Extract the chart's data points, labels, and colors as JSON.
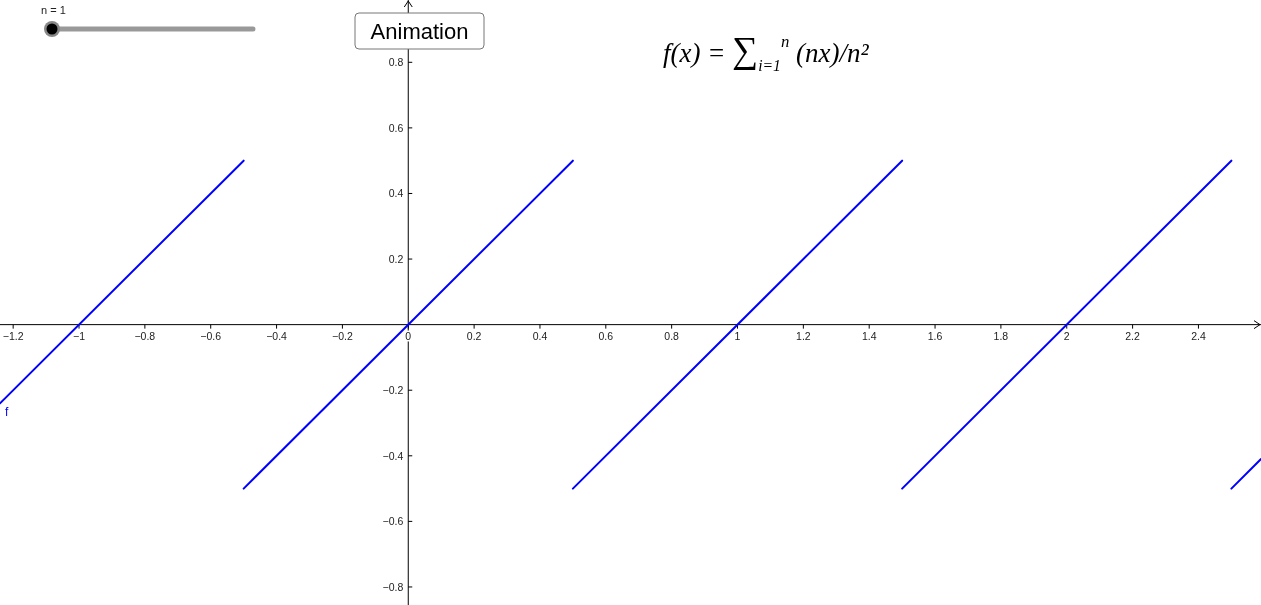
{
  "chart_data": {
    "type": "line",
    "title": "f(x) = ∑$_{i=1}$$^{n}$ (nx)/n²",
    "annotations": [
      "n = 1",
      "Animation"
    ],
    "xlim": [
      -1.24,
      2.59
    ],
    "ylim": [
      -0.855,
      0.99
    ],
    "xticks": [
      {
        "value": -1.2,
        "label": "−1.2"
      },
      {
        "value": -1,
        "label": "−1"
      },
      {
        "value": -0.8,
        "label": "−0.8"
      },
      {
        "value": -0.6,
        "label": "−0.6"
      },
      {
        "value": -0.4,
        "label": "−0.4"
      },
      {
        "value": -0.2,
        "label": "−0.2"
      },
      0,
      0.2,
      0.4,
      0.6,
      0.8,
      1,
      1.2,
      1.4,
      1.6,
      1.8,
      2,
      2.2,
      2.4
    ],
    "yticks": [
      {
        "value": -0.8,
        "label": "−0.8"
      },
      {
        "value": -0.6,
        "label": "−0.6"
      },
      {
        "value": -0.4,
        "label": "−0.4"
      },
      {
        "value": -0.2,
        "label": "−0.2"
      },
      0.2,
      0.4,
      0.6,
      0.8
    ],
    "series": [
      {
        "name": "f",
        "color": "#0000ff",
        "x": [
          -1.24,
          -0.5,
          null,
          -0.5,
          0.5,
          null,
          0.5,
          1.5,
          null,
          1.5,
          2.5,
          null,
          2.5,
          2.59
        ],
        "values": [
          -0.24,
          0.5,
          null,
          -0.5,
          0.5,
          null,
          -0.5,
          0.5,
          null,
          -0.5,
          0.5,
          null,
          -0.5,
          -0.41
        ]
      }
    ]
  }
}
